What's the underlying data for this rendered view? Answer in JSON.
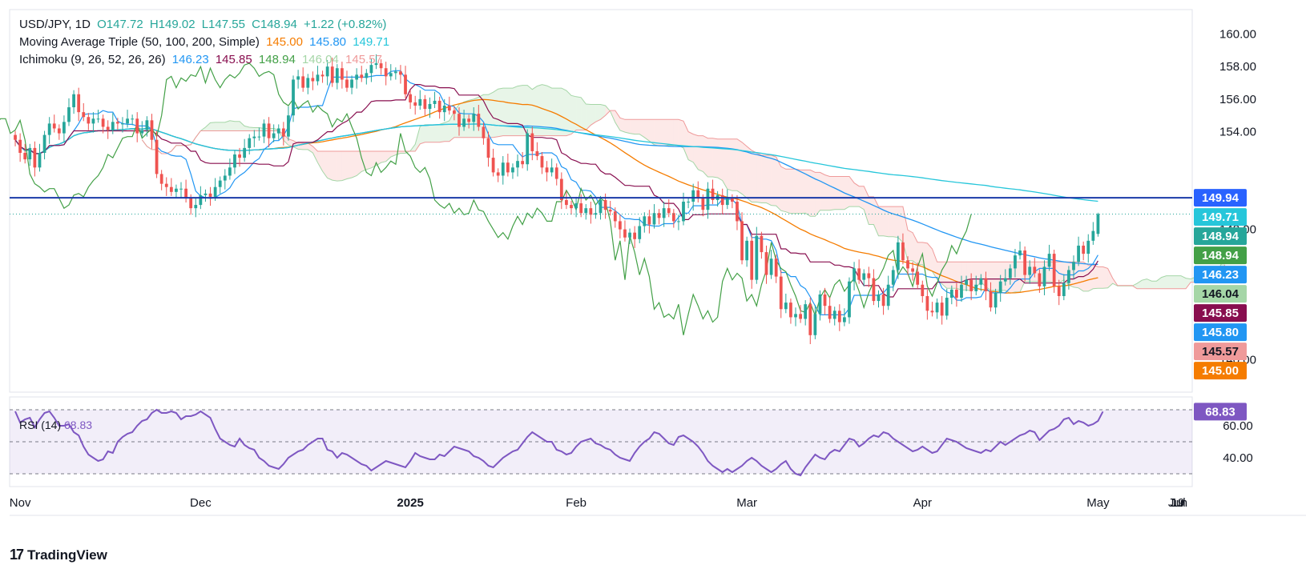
{
  "colors": {
    "up": "#26a69a",
    "down": "#ef5350",
    "ma50": "#f57c00",
    "ma100": "#2196f3",
    "ma200": "#26c6da",
    "tenkan": "#2196f3",
    "kijun": "#880e4f",
    "lagging": "#43a047",
    "span_a": "#a5d6a7",
    "span_b": "#ef9a9a",
    "rsi": "#7e57c2",
    "hline": "#1a3aa8"
  },
  "legend": {
    "line1": {
      "symbol": "USD/JPY, 1D",
      "open": "O147.72",
      "high": "H149.02",
      "low": "L147.55",
      "close": "C148.94",
      "change": "+1.22 (+0.82%)"
    },
    "line2": {
      "name": "Moving Average Triple (50, 100, 200, Simple)",
      "v1": "145.00",
      "v2": "145.80",
      "v3": "149.71"
    },
    "line3": {
      "name": "Ichimoku (9, 26, 52, 26, 26)",
      "v1": "146.23",
      "v2": "145.85",
      "v3": "148.94",
      "v4": "146.04",
      "v5": "145.57"
    },
    "rsi": {
      "name": "RSI (14)",
      "value": "68.83"
    }
  },
  "logo_text": "TradingView",
  "chart_data": {
    "type": "candlestick",
    "symbol": "USD/JPY",
    "interval": "1D",
    "x_ticks": [
      "Nov",
      "Dec",
      "2025",
      "Feb",
      "Mar",
      "Apr",
      "May",
      "Jun",
      "Jul",
      "19"
    ],
    "y_ticks": [
      "160.00",
      "158.00",
      "156.00",
      "154.00",
      "148.00",
      "140.00"
    ],
    "ylim": [
      138,
      161.5
    ],
    "price_badges": [
      {
        "label": "149.94",
        "value": 149.94,
        "color": "#2962ff"
      },
      {
        "label": "149.71",
        "value": 149.71,
        "color": "#26c6da"
      },
      {
        "label": "148.94",
        "value": 148.94,
        "color": "#26a69a"
      },
      {
        "label": "148.94",
        "value": 148.94,
        "color": "#43a047"
      },
      {
        "label": "146.23",
        "value": 146.23,
        "color": "#2196f3"
      },
      {
        "label": "146.04",
        "value": 146.04,
        "color": "#a5d6a7"
      },
      {
        "label": "145.85",
        "value": 145.85,
        "color": "#880e4f"
      },
      {
        "label": "145.80",
        "value": 145.8,
        "color": "#2196f3"
      },
      {
        "label": "145.57",
        "value": 145.57,
        "color": "#ef9a9a"
      },
      {
        "label": "145.00",
        "value": 145.0,
        "color": "#f57c00"
      }
    ],
    "horizontal_line": 149.94,
    "last_close": 148.94,
    "candles_close": [
      153.5,
      152.7,
      152.3,
      153.0,
      151.8,
      152.7,
      153.8,
      154.5,
      154.2,
      153.9,
      154.6,
      155.5,
      156.3,
      155.2,
      154.9,
      154.5,
      154.8,
      154.8,
      154.3,
      154.1,
      154.6,
      154.5,
      154.5,
      154.8,
      154.8,
      153.9,
      154.1,
      154.7,
      153.5,
      151.4,
      150.8,
      150.6,
      150.3,
      150.5,
      150.5,
      149.9,
      149.3,
      149.5,
      150.1,
      150.2,
      150.0,
      150.6,
      151.0,
      151.3,
      151.8,
      152.6,
      152.4,
      153.0,
      153.6,
      153.7,
      153.7,
      154.5,
      153.6,
      153.9,
      154.2,
      153.7,
      155.0,
      157.2,
      157.4,
      156.7,
      157.3,
      157.1,
      157.5,
      157.4,
      158.0,
      157.0,
      157.9,
      157.2,
      156.7,
      157.2,
      157.5,
      157.3,
      157.6,
      158.1,
      158.2,
      157.9,
      157.4,
      157.6,
      157.7,
      157.5,
      156.3,
      155.8,
      155.6,
      156.0,
      155.4,
      155.7,
      155.9,
      155.2,
      155.6,
      155.3,
      155.1,
      154.3,
      154.8,
      154.6,
      155.1,
      154.3,
      153.6,
      152.4,
      151.5,
      151.3,
      152.1,
      151.5,
      151.8,
      152.2,
      152.0,
      153.9,
      152.8,
      152.5,
      151.8,
      151.5,
      151.8,
      151.1,
      149.8,
      149.5,
      149.3,
      149.6,
      149.0,
      149.3,
      148.9,
      149.0,
      149.8,
      149.2,
      149.1,
      148.5,
      148.0,
      147.5,
      147.8,
      147.4,
      148.2,
      148.8,
      148.3,
      149.0,
      148.7,
      149.3,
      149.0,
      148.5,
      148.5,
      149.7,
      149.7,
      150.4,
      149.9,
      149.2,
      150.5,
      149.8,
      150.1,
      149.5,
      149.9,
      149.7,
      148.5,
      146.1,
      147.3,
      144.9,
      147.6,
      146.6,
      145.2,
      146.2,
      145.1,
      143.1,
      143.5,
      142.6,
      142.8,
      142.5,
      143.4,
      141.5,
      142.8,
      144.0,
      143.3,
      142.5,
      143.0,
      142.3,
      142.6,
      144.8,
      145.6,
      144.9,
      145.3,
      145.0,
      143.6,
      144.0,
      143.3,
      144.6,
      145.5,
      147.2,
      146.1,
      145.6,
      145.4,
      144.6,
      143.9,
      143.0,
      142.9,
      143.5,
      142.7,
      143.8,
      144.3,
      143.8,
      144.6,
      144.9,
      144.2,
      144.6,
      145.0,
      144.2,
      143.2,
      144.1,
      144.8,
      145.0,
      145.6,
      146.4,
      146.7,
      145.2,
      145.7,
      145.3,
      144.5,
      145.7,
      146.5,
      144.5,
      143.9,
      144.7,
      145.5,
      146.0,
      147.0,
      146.5,
      147.3,
      147.9,
      148.94
    ],
    "rsi": [
      69,
      62,
      64,
      65,
      59,
      64,
      68,
      69,
      65,
      60,
      60,
      61,
      56,
      54,
      47,
      42,
      40,
      38,
      39,
      44,
      43,
      50,
      53,
      55,
      56,
      60,
      63,
      64,
      68,
      70,
      68,
      68,
      69,
      68,
      64,
      66,
      66,
      67,
      69,
      67,
      65,
      58,
      52,
      50,
      48,
      47,
      52,
      48,
      46,
      45,
      40,
      38,
      35,
      34,
      33,
      36,
      40,
      42,
      44,
      45,
      48,
      50,
      52,
      52,
      45,
      44,
      40,
      43,
      42,
      40,
      38,
      36,
      35,
      32,
      34,
      36,
      38,
      37,
      36,
      35,
      34,
      38,
      43,
      41,
      40,
      39,
      39,
      42,
      41,
      44,
      47,
      46,
      45,
      44,
      41,
      40,
      38,
      35,
      34,
      37,
      40,
      42,
      44,
      45,
      49,
      53,
      56,
      54,
      52,
      50,
      50,
      45,
      44,
      42,
      43,
      47,
      50,
      51,
      52,
      49,
      48,
      46,
      45,
      42,
      40,
      39,
      38,
      43,
      47,
      50,
      52,
      56,
      55,
      52,
      49,
      48,
      53,
      54,
      52,
      50,
      47,
      43,
      38,
      35,
      33,
      31,
      33,
      31,
      33,
      35,
      38,
      40,
      38,
      35,
      33,
      31,
      33,
      36,
      38,
      33,
      30,
      29,
      34,
      38,
      42,
      40,
      39,
      43,
      45,
      44,
      48,
      52,
      51,
      47,
      49,
      52,
      54,
      53,
      56,
      55,
      52,
      50,
      48,
      46,
      44,
      45,
      47,
      45,
      43,
      44,
      48,
      52,
      51,
      50,
      48,
      46,
      45,
      44,
      43,
      45,
      44,
      47,
      50,
      48,
      50,
      52,
      54,
      55,
      57,
      56,
      51,
      54,
      57,
      58,
      60,
      64,
      65,
      61,
      63,
      62,
      60,
      61,
      63,
      68.83
    ]
  }
}
